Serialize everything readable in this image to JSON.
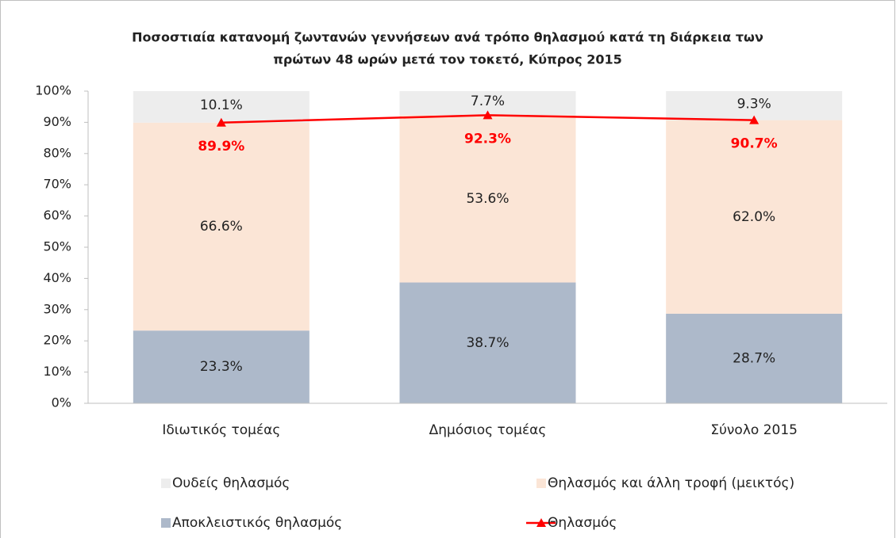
{
  "chart_data": {
    "type": "stacked_bar_line",
    "title": [
      "Ποσοστιαία κατανομή ζωντανών γεννήσεων ανά τρόπο θηλασμού κατά τη διάρκεια των",
      "πρώτων 48 ωρών μετά τον τοκετό, Κύπρος 2015"
    ],
    "categories": [
      "Ιδιωτικός τομέας",
      "Δημόσιος τομέας",
      "Σύνολο 2015"
    ],
    "series": [
      {
        "name": "Αποκλειστικός θηλασμός",
        "color": "#adb9ca",
        "values": [
          23.3,
          38.7,
          28.7
        ],
        "value_labels": [
          "23.3%",
          "38.7%",
          "28.7%"
        ]
      },
      {
        "name": "Θηλασμός και άλλη τροφή (μεικτός)",
        "color": "#fbe5d6",
        "values": [
          66.6,
          53.6,
          62.0
        ],
        "value_labels": [
          "66.6%",
          "53.6%",
          "62.0%"
        ]
      },
      {
        "name": "Ουδείς θηλασμός",
        "color": "#ededed",
        "values": [
          10.1,
          7.7,
          9.3
        ],
        "value_labels": [
          "10.1%",
          "7.7%",
          "9.3%"
        ]
      },
      {
        "name": "Θηλασμός",
        "type": "line",
        "color": "#ff0000",
        "values": [
          89.9,
          92.3,
          90.7
        ],
        "value_labels": [
          "89.9%",
          "92.3%",
          "90.7%"
        ]
      }
    ],
    "ylim": [
      0,
      100
    ],
    "yticks": [
      {
        "value": 0,
        "label": "0%"
      },
      {
        "value": 10,
        "label": "10%"
      },
      {
        "value": 20,
        "label": "20%"
      },
      {
        "value": 30,
        "label": "30%"
      },
      {
        "value": 40,
        "label": "40%"
      },
      {
        "value": 50,
        "label": "50%"
      },
      {
        "value": 60,
        "label": "60%"
      },
      {
        "value": 70,
        "label": "70%"
      },
      {
        "value": 80,
        "label": "80%"
      },
      {
        "value": 90,
        "label": "90%"
      },
      {
        "value": 100,
        "label": "100%"
      }
    ],
    "legend": "bottom"
  }
}
